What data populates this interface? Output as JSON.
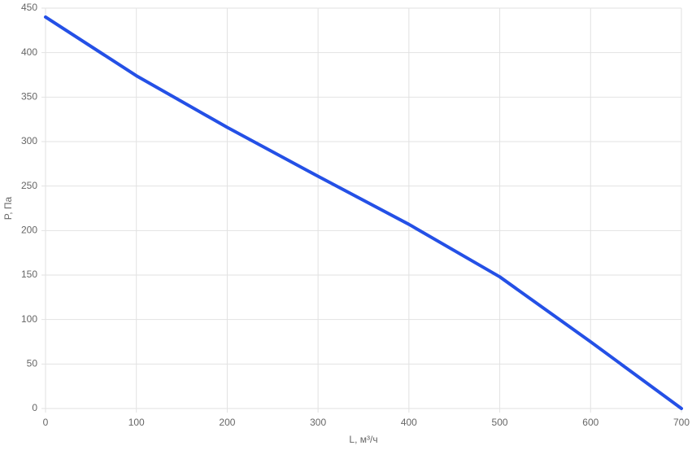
{
  "chart_data": {
    "type": "line",
    "x_label": "L, м³/ч",
    "y_label": "P, Па",
    "x": [
      0,
      100,
      200,
      300,
      400,
      500,
      600,
      700
    ],
    "series": [
      {
        "color": "#2450e6",
        "values": [
          440,
          374,
          316,
          261,
          207,
          148,
          75,
          0
        ]
      }
    ],
    "xlim": [
      0,
      700
    ],
    "xticks": [
      0,
      100,
      200,
      300,
      400,
      500,
      600,
      700
    ],
    "ylim": [
      0,
      450
    ],
    "yticks": [
      0,
      50,
      100,
      150,
      200,
      250,
      300,
      350,
      400,
      450
    ],
    "grid": true
  }
}
